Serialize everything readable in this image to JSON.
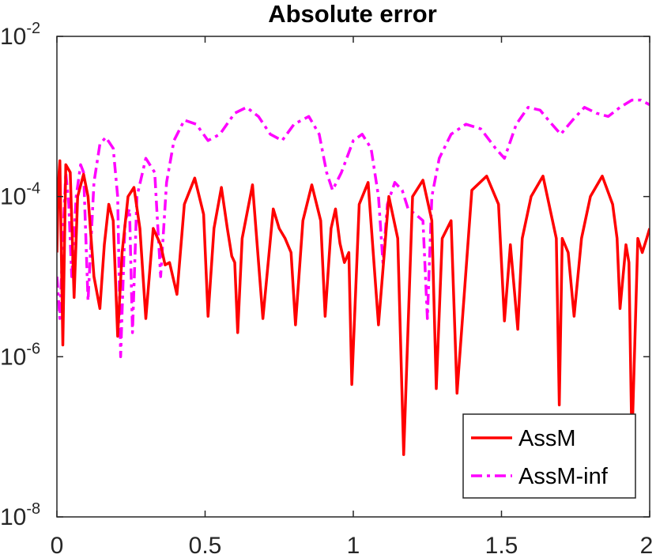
{
  "chart_data": {
    "type": "line",
    "title": "Absolute error",
    "xlabel": "",
    "ylabel": "",
    "xlim": [
      0,
      2
    ],
    "ylim": [
      1e-08,
      0.01
    ],
    "yscale": "log",
    "grid": false,
    "legend_position": "bottom-right",
    "x_ticks": [
      {
        "value": 0,
        "label": "0"
      },
      {
        "value": 0.5,
        "label": "0.5"
      },
      {
        "value": 1,
        "label": "1"
      },
      {
        "value": 1.5,
        "label": "1.5"
      },
      {
        "value": 2,
        "label": "2"
      }
    ],
    "y_ticks": [
      {
        "value": 1e-08,
        "base": "10",
        "exp": "-8"
      },
      {
        "value": 1e-06,
        "base": "10",
        "exp": "-6"
      },
      {
        "value": 0.0001,
        "base": "10",
        "exp": "-4"
      },
      {
        "value": 0.01,
        "base": "10",
        "exp": "-2"
      }
    ],
    "series": [
      {
        "name": "AssM",
        "color": "#ff0000",
        "style": "solid",
        "points": [
          [
            0.0,
            2e-05
          ],
          [
            0.005,
            0.00015
          ],
          [
            0.01,
            0.00028
          ],
          [
            0.02,
            1.4e-06
          ],
          [
            0.03,
            0.00025
          ],
          [
            0.045,
            0.0002
          ],
          [
            0.058,
            5.5e-06
          ],
          [
            0.07,
            0.0001
          ],
          [
            0.09,
            0.00019
          ],
          [
            0.105,
            0.0001
          ],
          [
            0.125,
            1e-05
          ],
          [
            0.145,
            4e-06
          ],
          [
            0.16,
            2.5e-05
          ],
          [
            0.175,
            8e-05
          ],
          [
            0.19,
            5e-05
          ],
          [
            0.205,
            1.8e-06
          ],
          [
            0.22,
            2e-05
          ],
          [
            0.24,
            0.0001
          ],
          [
            0.26,
            0.00013
          ],
          [
            0.28,
            4e-05
          ],
          [
            0.3,
            3e-06
          ],
          [
            0.325,
            4e-05
          ],
          [
            0.35,
            2.5e-05
          ],
          [
            0.365,
            1.4e-05
          ],
          [
            0.38,
            1.5e-05
          ],
          [
            0.405,
            6e-06
          ],
          [
            0.43,
            8e-05
          ],
          [
            0.465,
            0.00017
          ],
          [
            0.495,
            6e-05
          ],
          [
            0.51,
            3.2e-06
          ],
          [
            0.53,
            4e-05
          ],
          [
            0.555,
            0.00013
          ],
          [
            0.575,
            4e-05
          ],
          [
            0.59,
            1.8e-05
          ],
          [
            0.6,
            1.5e-05
          ],
          [
            0.61,
            2e-06
          ],
          [
            0.625,
            3e-05
          ],
          [
            0.66,
            0.00014
          ],
          [
            0.695,
            3e-06
          ],
          [
            0.73,
            7e-05
          ],
          [
            0.75,
            4e-05
          ],
          [
            0.77,
            3e-05
          ],
          [
            0.79,
            2e-05
          ],
          [
            0.805,
            2.5e-06
          ],
          [
            0.83,
            5e-05
          ],
          [
            0.86,
            0.00014
          ],
          [
            0.89,
            5e-05
          ],
          [
            0.905,
            3.2e-06
          ],
          [
            0.925,
            4e-05
          ],
          [
            0.94,
            7e-05
          ],
          [
            0.955,
            2.6e-05
          ],
          [
            0.97,
            1.5e-05
          ],
          [
            0.985,
            2e-05
          ],
          [
            0.995,
            4.5e-07
          ],
          [
            1.02,
            8e-05
          ],
          [
            1.05,
            0.00015
          ],
          [
            1.085,
            2.5e-06
          ],
          [
            1.12,
            0.0001
          ],
          [
            1.15,
            3e-05
          ],
          [
            1.17,
            6e-08
          ],
          [
            1.2,
            0.0001
          ],
          [
            1.235,
            0.00016
          ],
          [
            1.265,
            5e-05
          ],
          [
            1.28,
            4e-07
          ],
          [
            1.3,
            3e-05
          ],
          [
            1.33,
            5e-05
          ],
          [
            1.35,
            3.5e-07
          ],
          [
            1.4,
            0.00012
          ],
          [
            1.45,
            0.00018
          ],
          [
            1.49,
            8e-05
          ],
          [
            1.51,
            2.8e-06
          ],
          [
            1.53,
            2.5e-05
          ],
          [
            1.555,
            2.2e-06
          ],
          [
            1.57,
            3e-05
          ],
          [
            1.6,
            0.0001
          ],
          [
            1.64,
            0.00018
          ],
          [
            1.685,
            3e-05
          ],
          [
            1.695,
            2.5e-07
          ],
          [
            1.705,
            3e-05
          ],
          [
            1.725,
            2e-05
          ],
          [
            1.745,
            3.2e-06
          ],
          [
            1.77,
            3e-05
          ],
          [
            1.8,
            0.0001
          ],
          [
            1.84,
            0.00018
          ],
          [
            1.875,
            8e-05
          ],
          [
            1.89,
            3e-05
          ],
          [
            1.9,
            4e-06
          ],
          [
            1.91,
            1e-05
          ],
          [
            1.92,
            2.5e-05
          ],
          [
            1.93,
            1.5e-05
          ],
          [
            1.94,
            8e-08
          ],
          [
            1.96,
            3e-05
          ],
          [
            1.975,
            2e-05
          ],
          [
            1.99,
            3e-05
          ],
          [
            2.0,
            4e-05
          ]
        ]
      },
      {
        "name": "AssM-inf",
        "color": "#ff00ff",
        "style": "dashdot",
        "points": [
          [
            0.0,
            1e-05
          ],
          [
            0.01,
            3e-06
          ],
          [
            0.02,
            3e-05
          ],
          [
            0.03,
            0.0002
          ],
          [
            0.04,
            8e-05
          ],
          [
            0.05,
            1e-05
          ],
          [
            0.065,
            0.0001
          ],
          [
            0.08,
            0.00025
          ],
          [
            0.09,
            0.0002
          ],
          [
            0.105,
            5e-06
          ],
          [
            0.125,
            0.00015
          ],
          [
            0.145,
            0.00045
          ],
          [
            0.165,
            0.00055
          ],
          [
            0.19,
            0.0004
          ],
          [
            0.205,
            0.0001
          ],
          [
            0.215,
            1e-06
          ],
          [
            0.23,
            5e-05
          ],
          [
            0.245,
            7e-05
          ],
          [
            0.255,
            2e-06
          ],
          [
            0.27,
            0.0001
          ],
          [
            0.3,
            0.0003
          ],
          [
            0.33,
            0.0002
          ],
          [
            0.35,
            1e-05
          ],
          [
            0.37,
            0.00015
          ],
          [
            0.395,
            0.0005
          ],
          [
            0.43,
            0.0009
          ],
          [
            0.47,
            0.0008
          ],
          [
            0.51,
            0.0005
          ],
          [
            0.55,
            0.0006
          ],
          [
            0.6,
            0.0011
          ],
          [
            0.64,
            0.0013
          ],
          [
            0.68,
            0.001
          ],
          [
            0.72,
            0.0006
          ],
          [
            0.76,
            0.0005
          ],
          [
            0.8,
            0.0008
          ],
          [
            0.85,
            0.001
          ],
          [
            0.885,
            0.0006
          ],
          [
            0.91,
            0.0002
          ],
          [
            0.93,
            0.00012
          ],
          [
            0.96,
            0.0002
          ],
          [
            1.0,
            0.0005
          ],
          [
            1.03,
            0.0006
          ],
          [
            1.06,
            0.0004
          ],
          [
            1.085,
            0.0001
          ],
          [
            1.1,
            1.5e-05
          ],
          [
            1.115,
            8e-05
          ],
          [
            1.14,
            0.00015
          ],
          [
            1.165,
            0.00012
          ],
          [
            1.185,
            7e-05
          ],
          [
            1.21,
            6e-05
          ],
          [
            1.235,
            5e-05
          ],
          [
            1.25,
            3e-06
          ],
          [
            1.265,
            0.0001
          ],
          [
            1.29,
            0.0003
          ],
          [
            1.33,
            0.0006
          ],
          [
            1.38,
            0.0008
          ],
          [
            1.43,
            0.0007
          ],
          [
            1.48,
            0.0004
          ],
          [
            1.51,
            0.0003
          ],
          [
            1.55,
            0.0008
          ],
          [
            1.59,
            0.0013
          ],
          [
            1.63,
            0.0012
          ],
          [
            1.67,
            0.0008
          ],
          [
            1.7,
            0.0006
          ],
          [
            1.74,
            0.0009
          ],
          [
            1.78,
            0.0013
          ],
          [
            1.82,
            0.0011
          ],
          [
            1.86,
            0.001
          ],
          [
            1.9,
            0.0013
          ],
          [
            1.94,
            0.0016
          ],
          [
            1.97,
            0.0016
          ],
          [
            2.0,
            0.0014
          ]
        ]
      }
    ]
  }
}
